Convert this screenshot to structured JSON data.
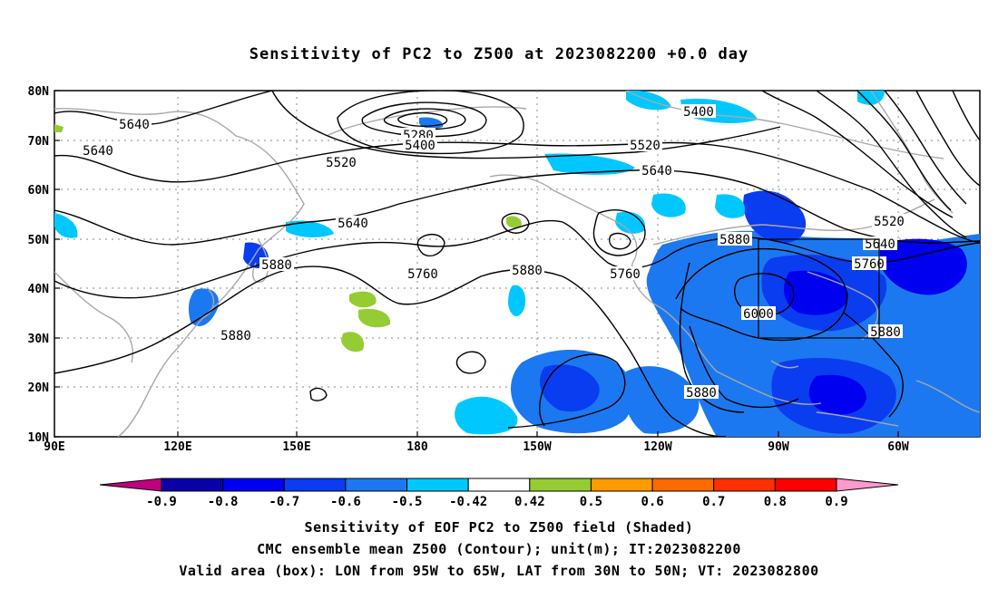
{
  "title": "Sensitivity of PC2 to Z500 at 2023082200 +0.0 day",
  "axes": {
    "lat_labels": [
      "80N",
      "70N",
      "60N",
      "50N",
      "40N",
      "30N",
      "20N",
      "10N"
    ],
    "lon_labels": [
      "90E",
      "120E",
      "150E",
      "180",
      "150W",
      "120W",
      "90W",
      "60W"
    ]
  },
  "contour_labels": [
    "5640",
    "5640",
    "5400",
    "5280",
    "5400",
    "5520",
    "5520",
    "5640",
    "5640",
    "5520",
    "5640",
    "5880",
    "5760",
    "5880",
    "5760",
    "5760",
    "6000",
    "5880",
    "5880",
    "5880",
    "5880"
  ],
  "colorbar": {
    "labels": [
      "-0.9",
      "-0.8",
      "-0.7",
      "-0.6",
      "-0.5",
      "-0.42",
      "0.42",
      "0.5",
      "0.6",
      "0.7",
      "0.8",
      "0.9"
    ],
    "colors": [
      "#c0007f",
      "#0b00a8",
      "#0000f0",
      "#0a3cf0",
      "#1c78f0",
      "#00c8ff",
      "#ffffff",
      "#96cc33",
      "#ff9a00",
      "#ff6a00",
      "#ff3000",
      "#ff0000",
      "#ff99cc"
    ]
  },
  "valid_box": "95W-65W, 30N-50N",
  "footer": {
    "line1": "Sensitivity of EOF PC2 to Z500 field (Shaded)",
    "line2": "CMC ensemble mean Z500 (Contour); unit(m); IT:2023082200",
    "line3": "Valid area (box): LON from 95W to 65W, LAT from 30N to 50N; VT: 2023082800"
  }
}
